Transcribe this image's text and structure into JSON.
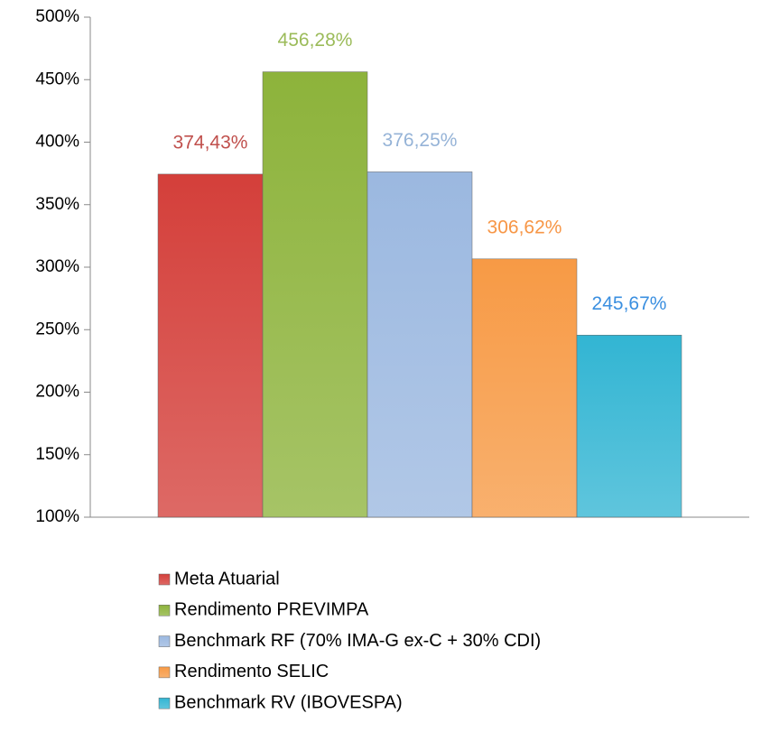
{
  "chart_data": {
    "type": "bar",
    "categories": [
      null
    ],
    "series": [
      {
        "name": "Meta Atuarial",
        "color": "#d43f3a",
        "label_color": "#c0504d",
        "values": [
          374.43
        ],
        "value_labels": [
          "374,43%"
        ]
      },
      {
        "name": "Rendimento PREVIMPA",
        "color": "#8db33b",
        "label_color": "#9bbb59",
        "values": [
          456.28
        ],
        "value_labels": [
          "456,28%"
        ]
      },
      {
        "name": "Benchmark RF (70% IMA-G ex-C + 30% CDI)",
        "color": "#9bb8e0",
        "label_color": "#95b3d7",
        "values": [
          376.25
        ],
        "value_labels": [
          "376,25%"
        ]
      },
      {
        "name": "Rendimento SELIC",
        "color": "#f79a45",
        "label_color": "#f79646",
        "values": [
          306.62
        ],
        "value_labels": [
          "306,62%"
        ]
      },
      {
        "name": "Benchmark RV (IBOVESPA)",
        "color": "#32b5d3",
        "label_color": "#3a8fe0",
        "values": [
          245.67
        ],
        "value_labels": [
          "245,67%"
        ]
      }
    ],
    "ylim": [
      100,
      500
    ],
    "yticks": [
      {
        "value": 100,
        "label": "100%"
      },
      {
        "value": 150,
        "label": "150%"
      },
      {
        "value": 200,
        "label": "200%"
      },
      {
        "value": 250,
        "label": "250%"
      },
      {
        "value": 300,
        "label": "300%"
      },
      {
        "value": 350,
        "label": "350%"
      },
      {
        "value": 400,
        "label": "400%"
      },
      {
        "value": 450,
        "label": "450%"
      },
      {
        "value": 500,
        "label": "500%"
      }
    ],
    "legend": "bottom"
  }
}
